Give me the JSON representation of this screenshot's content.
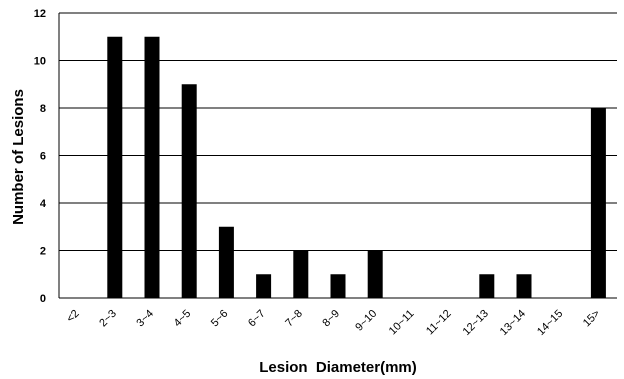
{
  "chart_data": {
    "type": "bar",
    "xlabel": "Lesion  Diameter(mm)",
    "ylabel": "Number of Lesions",
    "ylim": [
      0,
      12
    ],
    "yticks": [
      0,
      2,
      4,
      6,
      8,
      10,
      12
    ],
    "grid": true,
    "categories": [
      "<2",
      "2~3",
      "3~4",
      "4~5",
      "5~6",
      "6~7",
      "7~8",
      "8~9",
      "9~10",
      "10~11",
      "11~12",
      "12~13",
      "13~14",
      "14~15",
      "15>"
    ],
    "values": [
      0,
      11,
      11,
      9,
      3,
      1,
      2,
      1,
      2,
      0,
      0,
      1,
      1,
      0,
      8
    ],
    "bar_color": "#000000"
  }
}
